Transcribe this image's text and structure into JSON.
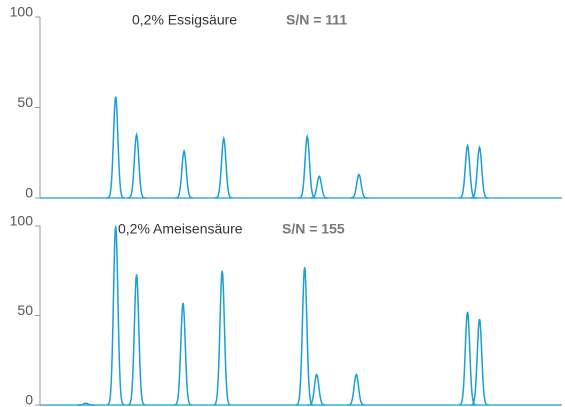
{
  "chart_data": [
    {
      "type": "chromatogram",
      "title": "0,2% Essigsäure",
      "annotation": "S/N = 111",
      "color": "#1a9fd6",
      "xlim": [
        0,
        100
      ],
      "ylim": [
        0,
        100
      ],
      "yticks": [
        0,
        50,
        100
      ],
      "x": [
        14.5,
        18.5,
        27.6,
        35.2,
        51.2,
        53.5,
        61.1,
        81.9,
        84.2
      ],
      "values": [
        56,
        35,
        26,
        33,
        34,
        12,
        13,
        29,
        28
      ]
    },
    {
      "type": "chromatogram",
      "title": "0,2%  Ameisensäure",
      "annotation": "S/N = 155",
      "color": "#1a9fd6",
      "xlim": [
        0,
        100
      ],
      "ylim": [
        0,
        100
      ],
      "yticks": [
        0,
        50,
        100
      ],
      "x": [
        8.8,
        14.5,
        18.5,
        27.4,
        34.9,
        50.7,
        53.0,
        60.6,
        81.9,
        84.2
      ],
      "values": [
        1,
        100,
        73,
        57,
        75,
        77,
        17,
        17,
        52,
        48
      ]
    }
  ]
}
